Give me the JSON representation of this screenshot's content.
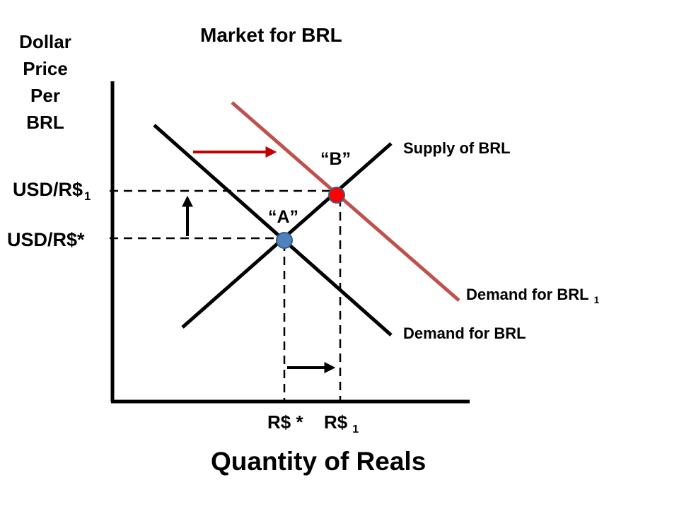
{
  "title": "Market for BRL",
  "y_axis_label": [
    "Dollar",
    "Price",
    "Per",
    "BRL"
  ],
  "x_axis_label": "Quantity of Reals",
  "price_labels": {
    "new": {
      "text": "USD/R$",
      "sub": "1"
    },
    "original": {
      "text": "USD/R$*"
    }
  },
  "quantity_labels": {
    "original": {
      "text": "R$ *"
    },
    "new": {
      "text": "R$",
      "sub": "1"
    }
  },
  "curves": {
    "supply": {
      "label": "Supply of BRL",
      "color": "#000000"
    },
    "demand": {
      "label": "Demand for BRL",
      "color": "#000000"
    },
    "demand_new": {
      "label": "Demand for BRL",
      "sub": "1",
      "color": "#C0504D"
    }
  },
  "points": {
    "a": {
      "label": "“A”",
      "color": "#4F81BD"
    },
    "b": {
      "label": "“B”",
      "color": "#FF0000"
    }
  },
  "arrows": {
    "demand_shift": {
      "color": "#C00000"
    },
    "price_rise": {
      "color": "#000000"
    },
    "quantity_rise": {
      "color": "#000000"
    }
  }
}
